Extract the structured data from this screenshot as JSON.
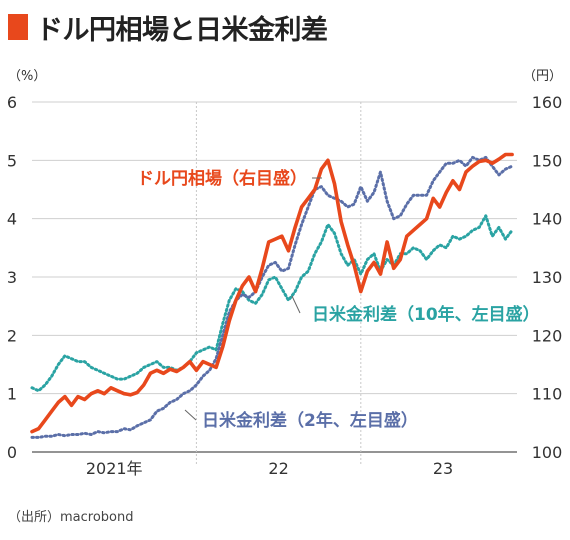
{
  "title": "ドル円相場と日米金利差",
  "source": "（出所）macrobond",
  "colors": {
    "usdjpy": "#e8481c",
    "spread10": "#2aa3a3",
    "spread2": "#5b6fa8",
    "title_mark": "#e8481c"
  },
  "chart_data": {
    "type": "line",
    "left_axis": {
      "unit_label": "（%）",
      "range": [
        0,
        6
      ],
      "ticks": [
        "0",
        "1",
        "2",
        "3",
        "4",
        "5",
        "6"
      ]
    },
    "right_axis": {
      "unit_label": "（円）",
      "range": [
        100,
        160
      ],
      "ticks": [
        "100",
        "110",
        "120",
        "130",
        "140",
        "150",
        "160"
      ]
    },
    "x_range": [
      2021.0,
      2023.95
    ],
    "x_ticks": [
      {
        "label": "2021年",
        "pos": 2021.5
      },
      {
        "label": "22",
        "pos": 2022.5
      },
      {
        "label": "23",
        "pos": 2023.5
      }
    ],
    "x_year_dividers": [
      2022.0,
      2023.0
    ],
    "grid": true,
    "series": [
      {
        "key": "usdjpy",
        "name": "ドル円相場（右目盛）",
        "axis": "right",
        "style": "solid",
        "x": [
          2021.0,
          2021.04,
          2021.08,
          2021.12,
          2021.16,
          2021.2,
          2021.24,
          2021.28,
          2021.32,
          2021.36,
          2021.4,
          2021.44,
          2021.48,
          2021.52,
          2021.56,
          2021.6,
          2021.64,
          2021.68,
          2021.72,
          2021.76,
          2021.8,
          2021.84,
          2021.88,
          2021.92,
          2021.96,
          2022.0,
          2022.04,
          2022.08,
          2022.12,
          2022.16,
          2022.2,
          2022.24,
          2022.28,
          2022.32,
          2022.36,
          2022.4,
          2022.44,
          2022.48,
          2022.52,
          2022.56,
          2022.6,
          2022.64,
          2022.68,
          2022.72,
          2022.76,
          2022.8,
          2022.84,
          2022.88,
          2022.92,
          2022.96,
          2023.0,
          2023.04,
          2023.08,
          2023.12,
          2023.16,
          2023.2,
          2023.24,
          2023.28,
          2023.32,
          2023.36,
          2023.4,
          2023.44,
          2023.48,
          2023.52,
          2023.56,
          2023.6,
          2023.64,
          2023.68,
          2023.72,
          2023.76,
          2023.8,
          2023.84,
          2023.88,
          2023.92
        ],
        "values": [
          103.5,
          104.0,
          105.5,
          107.0,
          108.5,
          109.5,
          108.0,
          109.5,
          109.0,
          110.0,
          110.5,
          110.0,
          111.0,
          110.5,
          110.0,
          109.8,
          110.2,
          111.5,
          113.5,
          114.0,
          113.5,
          114.2,
          113.8,
          114.5,
          115.5,
          114.0,
          115.5,
          115.0,
          114.5,
          118.0,
          122.5,
          126.0,
          128.5,
          130.0,
          127.5,
          131.5,
          136.0,
          136.5,
          137.0,
          134.5,
          138.5,
          142.0,
          143.5,
          145.0,
          148.5,
          150.0,
          146.0,
          139.5,
          135.5,
          132.0,
          127.5,
          131.0,
          132.5,
          130.5,
          136.0,
          131.5,
          133.0,
          137.0,
          138.0,
          139.0,
          140.0,
          143.5,
          142.0,
          144.5,
          146.5,
          145.0,
          148.0,
          149.0,
          149.8,
          150.0,
          149.5,
          150.2,
          151.0,
          151.0
        ]
      },
      {
        "key": "spread10",
        "name": "日米金利差（10年、左目盛）",
        "axis": "left",
        "style": "dotted",
        "x": [
          2021.0,
          2021.04,
          2021.08,
          2021.12,
          2021.16,
          2021.2,
          2021.24,
          2021.28,
          2021.32,
          2021.36,
          2021.4,
          2021.44,
          2021.48,
          2021.52,
          2021.56,
          2021.6,
          2021.64,
          2021.68,
          2021.72,
          2021.76,
          2021.8,
          2021.84,
          2021.88,
          2021.92,
          2021.96,
          2022.0,
          2022.04,
          2022.08,
          2022.12,
          2022.16,
          2022.2,
          2022.24,
          2022.28,
          2022.32,
          2022.36,
          2022.4,
          2022.44,
          2022.48,
          2022.52,
          2022.56,
          2022.6,
          2022.64,
          2022.68,
          2022.72,
          2022.76,
          2022.8,
          2022.84,
          2022.88,
          2022.92,
          2022.96,
          2023.0,
          2023.04,
          2023.08,
          2023.12,
          2023.16,
          2023.2,
          2023.24,
          2023.28,
          2023.32,
          2023.36,
          2023.4,
          2023.44,
          2023.48,
          2023.52,
          2023.56,
          2023.6,
          2023.64,
          2023.68,
          2023.72,
          2023.76,
          2023.8,
          2023.84,
          2023.88,
          2023.92
        ],
        "values": [
          1.1,
          1.05,
          1.15,
          1.3,
          1.5,
          1.65,
          1.6,
          1.55,
          1.55,
          1.45,
          1.4,
          1.35,
          1.3,
          1.25,
          1.25,
          1.3,
          1.35,
          1.45,
          1.5,
          1.55,
          1.45,
          1.45,
          1.4,
          1.45,
          1.55,
          1.7,
          1.75,
          1.8,
          1.75,
          2.2,
          2.6,
          2.8,
          2.75,
          2.6,
          2.55,
          2.7,
          2.95,
          3.0,
          2.8,
          2.6,
          2.75,
          3.0,
          3.1,
          3.4,
          3.6,
          3.9,
          3.75,
          3.4,
          3.2,
          3.3,
          3.05,
          3.3,
          3.4,
          3.1,
          3.3,
          3.2,
          3.4,
          3.4,
          3.5,
          3.45,
          3.3,
          3.45,
          3.55,
          3.5,
          3.7,
          3.65,
          3.7,
          3.8,
          3.85,
          4.05,
          3.7,
          3.85,
          3.65,
          3.8
        ]
      },
      {
        "key": "spread2",
        "name": "日米金利差（2年、左目盛）",
        "axis": "left",
        "style": "dotted",
        "x": [
          2021.0,
          2021.04,
          2021.08,
          2021.12,
          2021.16,
          2021.2,
          2021.24,
          2021.28,
          2021.32,
          2021.36,
          2021.4,
          2021.44,
          2021.48,
          2021.52,
          2021.56,
          2021.6,
          2021.64,
          2021.68,
          2021.72,
          2021.76,
          2021.8,
          2021.84,
          2021.88,
          2021.92,
          2021.96,
          2022.0,
          2022.04,
          2022.08,
          2022.12,
          2022.16,
          2022.2,
          2022.24,
          2022.28,
          2022.32,
          2022.36,
          2022.4,
          2022.44,
          2022.48,
          2022.52,
          2022.56,
          2022.6,
          2022.64,
          2022.68,
          2022.72,
          2022.76,
          2022.8,
          2022.84,
          2022.88,
          2022.92,
          2022.96,
          2023.0,
          2023.04,
          2023.08,
          2023.12,
          2023.16,
          2023.2,
          2023.24,
          2023.28,
          2023.32,
          2023.36,
          2023.4,
          2023.44,
          2023.48,
          2023.52,
          2023.56,
          2023.6,
          2023.64,
          2023.68,
          2023.72,
          2023.76,
          2023.8,
          2023.84,
          2023.88,
          2023.92
        ],
        "values": [
          0.25,
          0.25,
          0.27,
          0.27,
          0.3,
          0.28,
          0.3,
          0.3,
          0.32,
          0.3,
          0.35,
          0.33,
          0.35,
          0.35,
          0.4,
          0.38,
          0.45,
          0.5,
          0.55,
          0.7,
          0.75,
          0.85,
          0.9,
          1.0,
          1.05,
          1.15,
          1.3,
          1.4,
          1.6,
          2.0,
          2.4,
          2.6,
          2.7,
          2.65,
          2.75,
          3.0,
          3.2,
          3.25,
          3.1,
          3.15,
          3.55,
          3.9,
          4.2,
          4.5,
          4.55,
          4.4,
          4.35,
          4.3,
          4.2,
          4.25,
          4.55,
          4.3,
          4.45,
          4.8,
          4.3,
          4.0,
          4.05,
          4.25,
          4.4,
          4.4,
          4.4,
          4.65,
          4.8,
          4.95,
          4.95,
          5.0,
          4.9,
          5.05,
          5.0,
          5.05,
          4.9,
          4.75,
          4.85,
          4.9
        ]
      }
    ],
    "annotations": [
      {
        "text": "ドル円相場（右目盛）",
        "series": "usdjpy"
      },
      {
        "text": "日米金利差（10年、左目盛）",
        "series": "spread10"
      },
      {
        "text": "日米金利差（2年、左目盛）",
        "series": "spread2"
      }
    ]
  }
}
